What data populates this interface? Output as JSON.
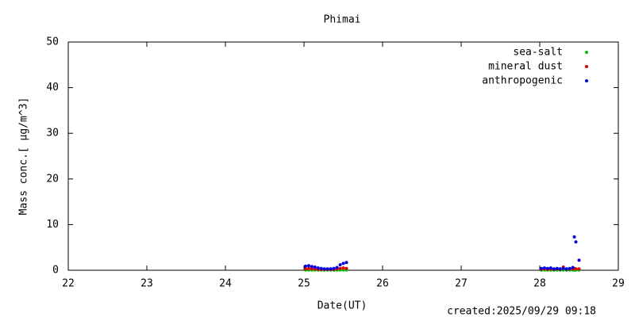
{
  "chart_data": {
    "type": "scatter",
    "title": "Phimai",
    "x_label": "Date(UT)",
    "y_label": "Mass conc.[ μg/m^3]",
    "footer": "created:2025/09/29 09:18",
    "legend": "top-right",
    "xlim": [
      22,
      29
    ],
    "xticks": [
      22,
      23,
      24,
      25,
      26,
      27,
      28,
      29
    ],
    "ylim": [
      0,
      50
    ],
    "yticks": [
      0,
      10,
      20,
      30,
      40,
      50
    ],
    "x": [
      25.02,
      25.06,
      25.1,
      25.14,
      25.18,
      25.22,
      25.26,
      25.3,
      25.34,
      25.38,
      25.42,
      25.46,
      25.5,
      25.54,
      28.02,
      28.06,
      28.1,
      28.14,
      28.18,
      28.22,
      28.26,
      28.3,
      28.34,
      28.38,
      28.42,
      28.44,
      28.46,
      28.5
    ],
    "series": [
      {
        "name": "sea-salt",
        "color": "#00c000",
        "values": [
          0.05,
          0.05,
          0.05,
          0.05,
          0.05,
          0.05,
          0.05,
          0.05,
          0.05,
          0.05,
          0.05,
          0.05,
          0.05,
          0.05,
          0.05,
          0.05,
          0.05,
          0.05,
          0.05,
          0.05,
          0.05,
          0.05,
          0.05,
          0.05,
          0.05,
          0.05,
          0.05,
          0.05
        ]
      },
      {
        "name": "mineral dust",
        "color": "#e00000",
        "values": [
          0.3,
          0.4,
          0.3,
          0.3,
          0.2,
          0.2,
          0.2,
          0.2,
          0.2,
          0.2,
          0.3,
          0.4,
          0.5,
          0.4,
          0.2,
          0.3,
          0.2,
          0.3,
          0.2,
          0.3,
          0.2,
          0.7,
          0.2,
          0.3,
          0.3,
          0.4,
          0.3,
          0.3
        ]
      },
      {
        "name": "anthropogenic",
        "color": "#0000e0",
        "values": [
          0.9,
          1.0,
          0.8,
          0.7,
          0.5,
          0.4,
          0.3,
          0.3,
          0.3,
          0.4,
          0.6,
          1.2,
          1.5,
          1.7,
          0.4,
          0.5,
          0.4,
          0.5,
          0.3,
          0.4,
          0.3,
          0.4,
          0.3,
          0.4,
          0.6,
          7.3,
          6.2,
          2.2
        ]
      }
    ]
  }
}
